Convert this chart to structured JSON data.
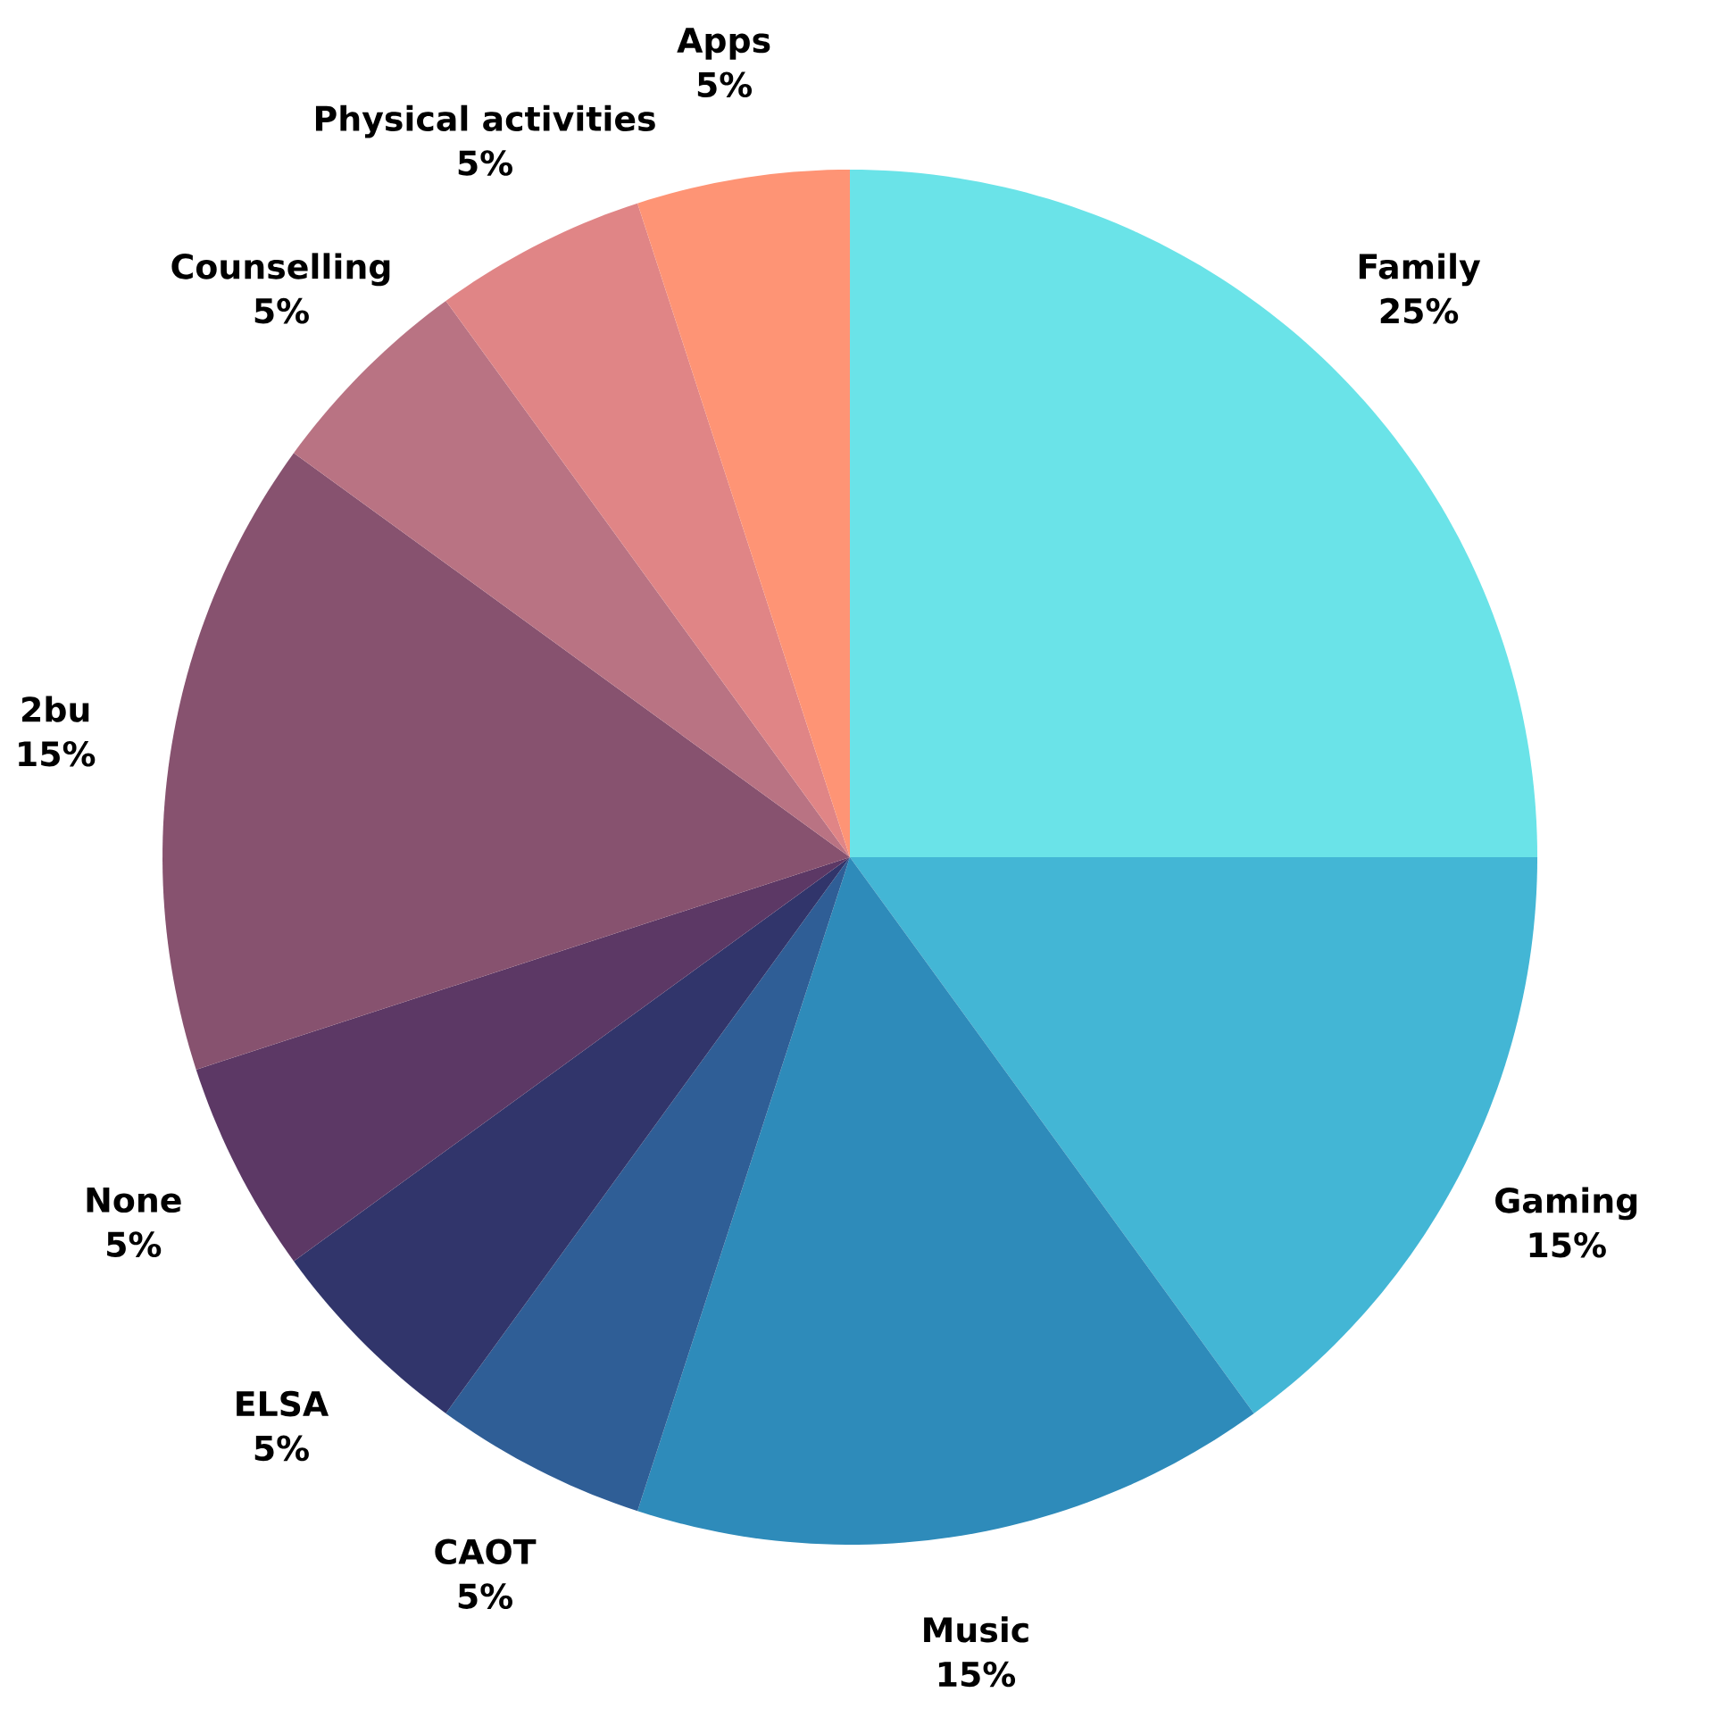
{
  "chart_data": {
    "type": "pie",
    "categories": [
      "Family",
      "Gaming",
      "Music",
      "CAOT",
      "ELSA",
      "None",
      "2bu",
      "Counselling",
      "Physical activities",
      "Apps"
    ],
    "values": [
      25,
      15,
      15,
      5,
      5,
      5,
      15,
      5,
      5,
      5
    ],
    "value_labels": [
      "25%",
      "15%",
      "15%",
      "5%",
      "5%",
      "5%",
      "15%",
      "5%",
      "5%",
      "5%"
    ],
    "colors": [
      "#6ae3e8",
      "#43b6d5",
      "#2e8bba",
      "#2f5e96",
      "#31356b",
      "#5c3865",
      "#87526f",
      "#b97383",
      "#e08586",
      "#fe9475"
    ]
  }
}
